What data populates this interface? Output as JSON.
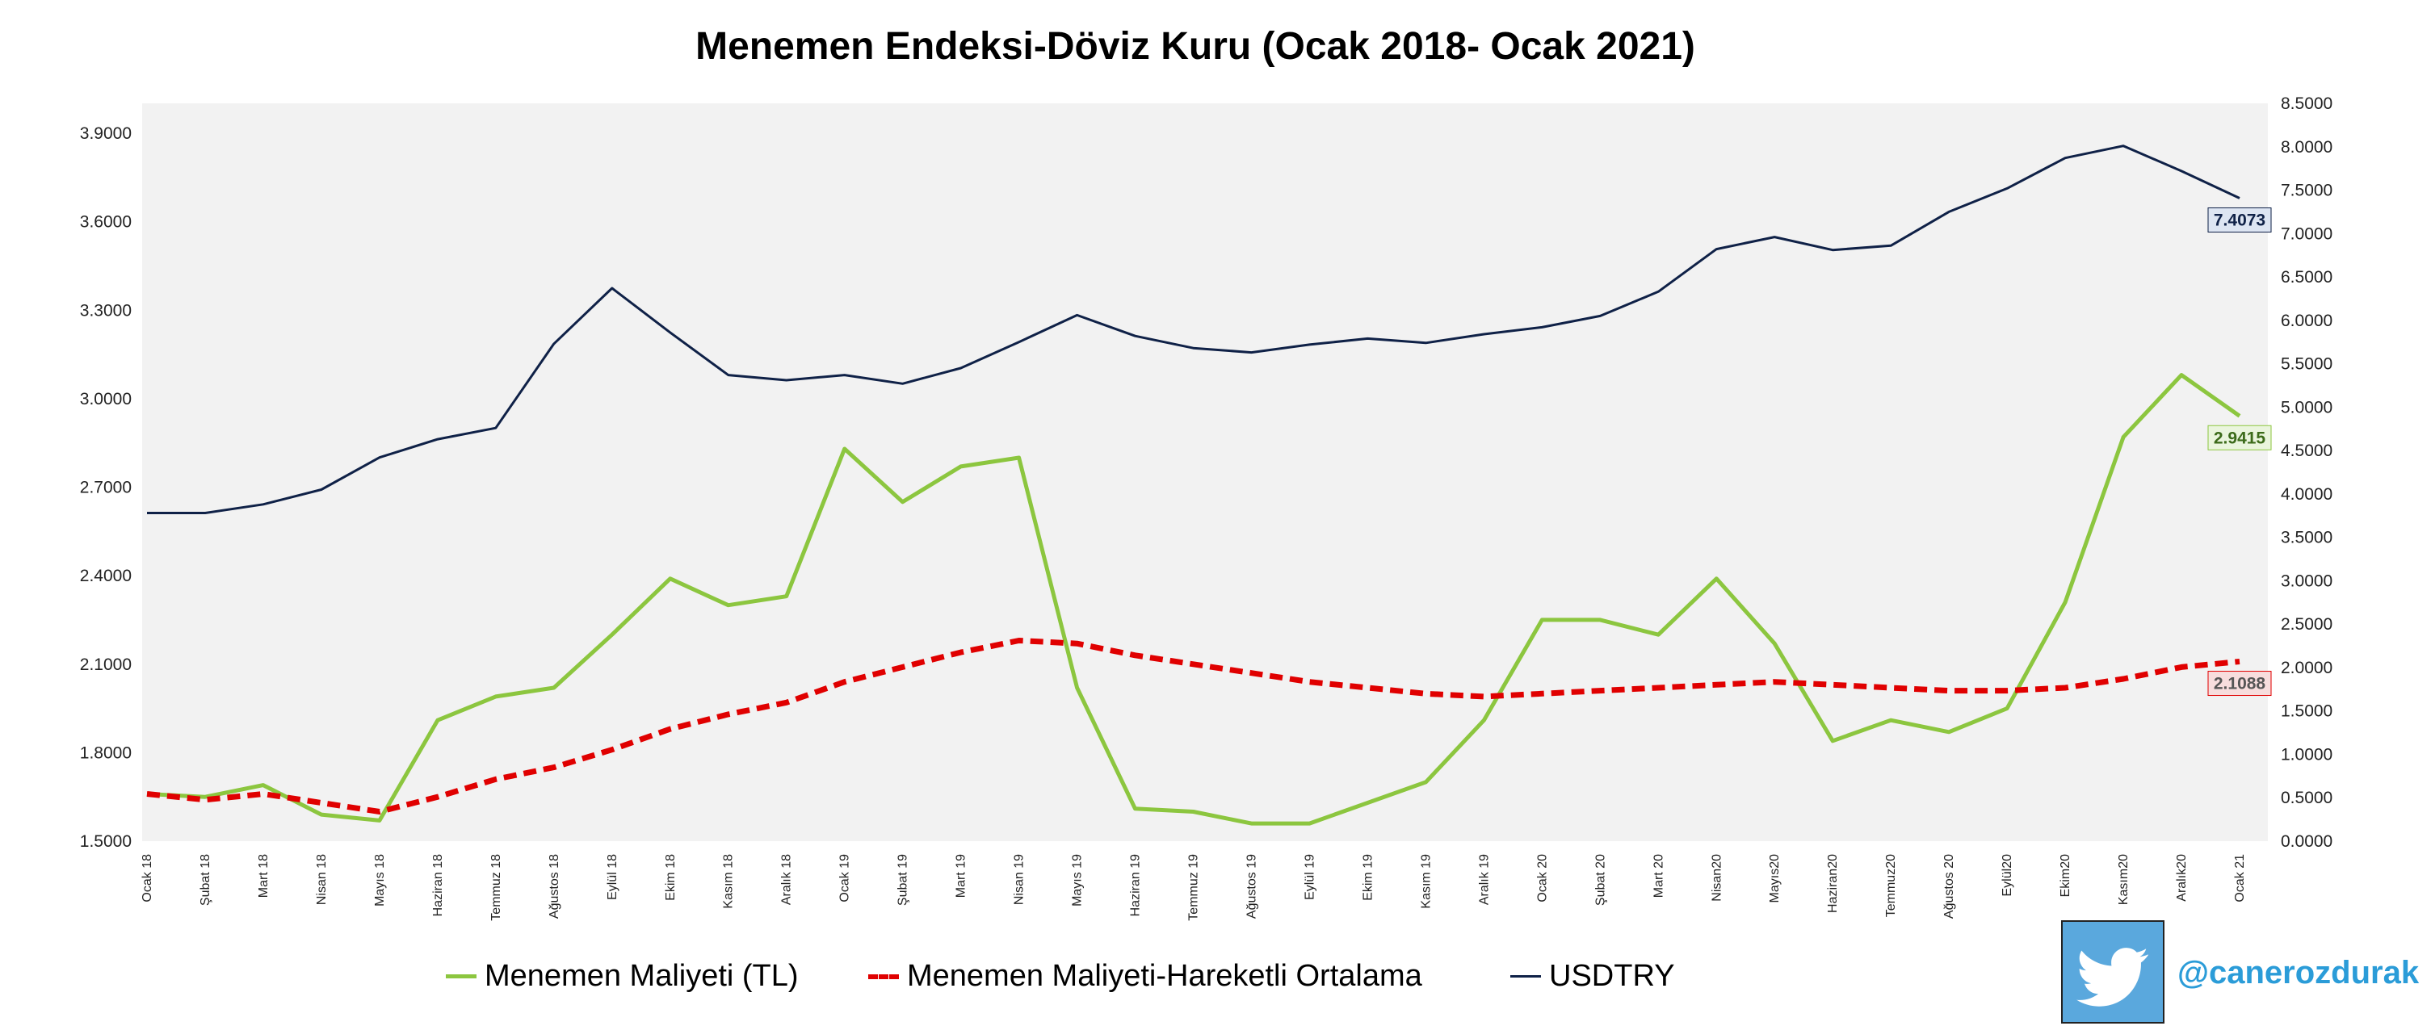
{
  "title": "Menemen Endeksi-Döviz Kuru (Ocak 2018- Ocak 2021)",
  "chart_data": {
    "type": "line",
    "title": "Menemen Endeksi-Döviz Kuru (Ocak 2018- Ocak 2021)",
    "categories": [
      "Ocak 18",
      "Şubat 18",
      "Mart 18",
      "Nisan 18",
      "Mayıs 18",
      "Haziran 18",
      "Temmuz 18",
      "Ağustos 18",
      "Eylül 18",
      "Ekim 18",
      "Kasım 18",
      "Aralık 18",
      "Ocak 19",
      "Şubat 19",
      "Mart 19",
      "Nisan 19",
      "Mayıs 19",
      "Haziran 19",
      "Temmuz 19",
      "Ağustos 19",
      "Eylül 19",
      "Ekim 19",
      "Kasım 19",
      "Aralık 19",
      "Ocak 20",
      "Şubat 20",
      "Mart 20",
      "Nisan20",
      "Mayıs20",
      "Haziran20",
      "Temmuz20",
      "Ağustos 20",
      "Eylül20",
      "Ekim20",
      "Kasım20",
      "Aralık20",
      "Ocak 21"
    ],
    "left_axis": {
      "ylim": [
        1.5,
        3.9
      ],
      "ticks": [
        "1.5000",
        "1.8000",
        "2.1000",
        "2.4000",
        "2.7000",
        "3.0000",
        "3.3000",
        "3.6000",
        "3.9000"
      ]
    },
    "right_axis": {
      "ylim": [
        0,
        8.5
      ],
      "ticks": [
        "0.0000",
        "0.5000",
        "1.0000",
        "1.5000",
        "2.0000",
        "2.5000",
        "3.0000",
        "3.5000",
        "4.0000",
        "4.5000",
        "5.0000",
        "5.5000",
        "6.0000",
        "6.5000",
        "7.0000",
        "7.5000",
        "8.0000",
        "8.5000"
      ]
    },
    "series": [
      {
        "name": "Menemen Maliyeti (TL)",
        "axis": "left",
        "color": "#8cc63f",
        "style": "solid",
        "values": [
          1.66,
          1.65,
          1.69,
          1.59,
          1.57,
          1.91,
          1.99,
          2.02,
          2.2,
          2.39,
          2.3,
          2.33,
          2.83,
          2.65,
          2.77,
          2.8,
          2.02,
          1.61,
          1.6,
          1.56,
          1.56,
          1.63,
          1.7,
          1.91,
          2.25,
          2.25,
          2.2,
          2.39,
          2.17,
          1.84,
          1.91,
          1.87,
          1.95,
          2.31,
          2.87,
          3.08,
          2.9415
        ],
        "end_label": "2.9415"
      },
      {
        "name": "Menemen Maliyeti-Hareketli Ortalama",
        "axis": "left",
        "color": "#e00000",
        "style": "dashed",
        "values": [
          1.66,
          1.64,
          1.66,
          1.63,
          1.6,
          1.65,
          1.71,
          1.75,
          1.81,
          1.88,
          1.93,
          1.97,
          2.04,
          2.09,
          2.14,
          2.18,
          2.17,
          2.13,
          2.1,
          2.07,
          2.04,
          2.02,
          2.0,
          1.99,
          2.0,
          2.01,
          2.02,
          2.03,
          2.04,
          2.03,
          2.02,
          2.01,
          2.01,
          2.02,
          2.05,
          2.09,
          2.1088
        ],
        "end_label": "2.1088"
      },
      {
        "name": "USDTRY",
        "axis": "right",
        "color": "#0f2147",
        "style": "solid",
        "values": [
          3.78,
          3.78,
          3.88,
          4.05,
          4.42,
          4.63,
          4.76,
          5.73,
          6.37,
          5.86,
          5.37,
          5.31,
          5.37,
          5.27,
          5.45,
          5.75,
          6.06,
          5.82,
          5.68,
          5.63,
          5.72,
          5.79,
          5.74,
          5.84,
          5.92,
          6.05,
          6.33,
          6.82,
          6.96,
          6.81,
          6.86,
          7.25,
          7.52,
          7.87,
          8.01,
          7.72,
          7.4073
        ],
        "end_label": "7.4073"
      }
    ],
    "grid": false,
    "legend": "bottom"
  },
  "twitter": {
    "handle": "@canerozdurak",
    "icon": "twitter-bird-icon"
  }
}
